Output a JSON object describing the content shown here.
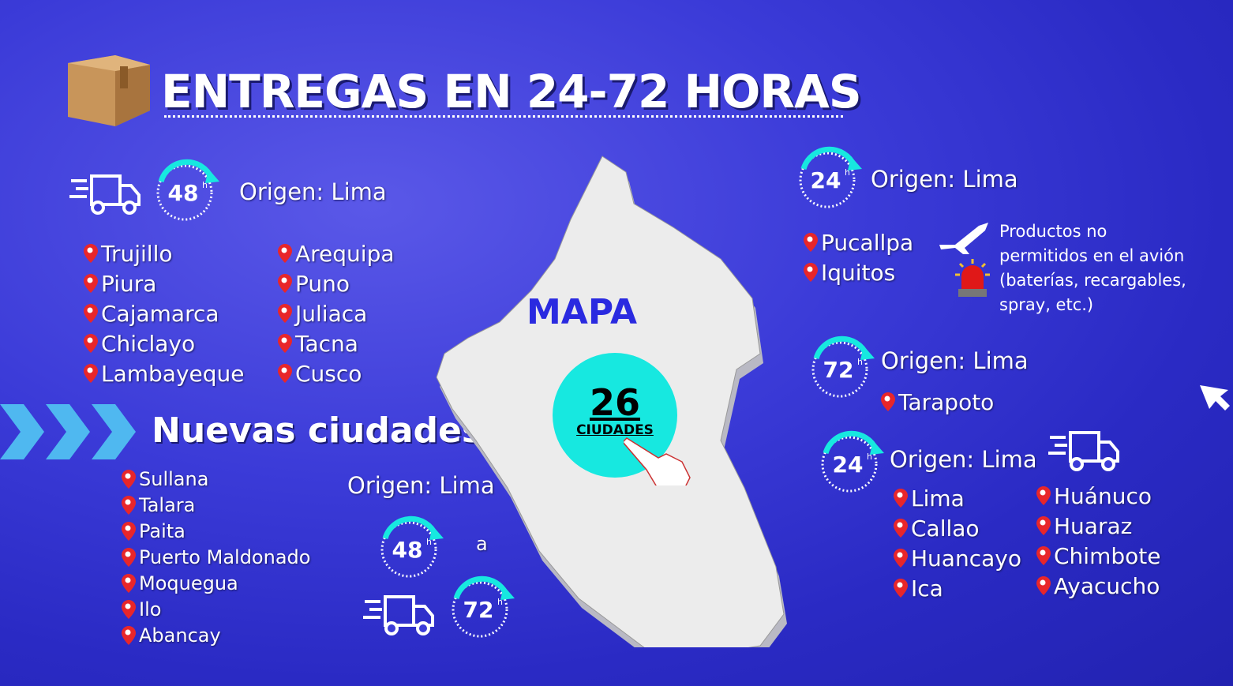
{
  "title": "ENTREGAS EN 24-72 HORAS",
  "colors": {
    "background": "#3b3bd8",
    "accent_cyan": "#17e8e0",
    "pin": "#e8262a",
    "map": "#ececec"
  },
  "left_48": {
    "hours": "48",
    "unit": "h",
    "origin": "Origen: Lima",
    "col1": [
      "Trujillo",
      "Piura",
      "Cajamarca",
      "Chiclayo",
      "Lambayeque"
    ],
    "col2": [
      "Arequipa",
      "Puno",
      "Juliaca",
      "Tacna",
      "Cusco"
    ]
  },
  "nuevas": {
    "title": "Nuevas ciudades",
    "cities": [
      "Sullana",
      "Talara",
      "Paita",
      "Puerto Maldonado",
      "Moquegua",
      "Ilo",
      "Abancay"
    ],
    "origin": "Origen: Lima",
    "from_hours": "48",
    "to_word": "a",
    "to_hours": "72",
    "unit": "h"
  },
  "map": {
    "label": "MAPA",
    "count": "26",
    "count_label": "CIUDADES"
  },
  "right_24a": {
    "hours": "24",
    "unit": "h",
    "origin": "Origen: Lima",
    "cities": [
      "Pucallpa",
      "Iquitos"
    ],
    "warning": "Productos no permitidos en el avión (baterías, recargables, spray, etc.)"
  },
  "right_72": {
    "hours": "72",
    "unit": "h",
    "origin": "Origen: Lima",
    "cities": [
      "Tarapoto"
    ]
  },
  "right_24b": {
    "hours": "24",
    "unit": "h",
    "origin": "Origen: Lima",
    "col1": [
      "Lima",
      "Callao",
      "Huancayo",
      "Ica"
    ],
    "col2": [
      "Huánuco",
      "Huaraz",
      "Chimbote",
      "Ayacucho"
    ]
  }
}
